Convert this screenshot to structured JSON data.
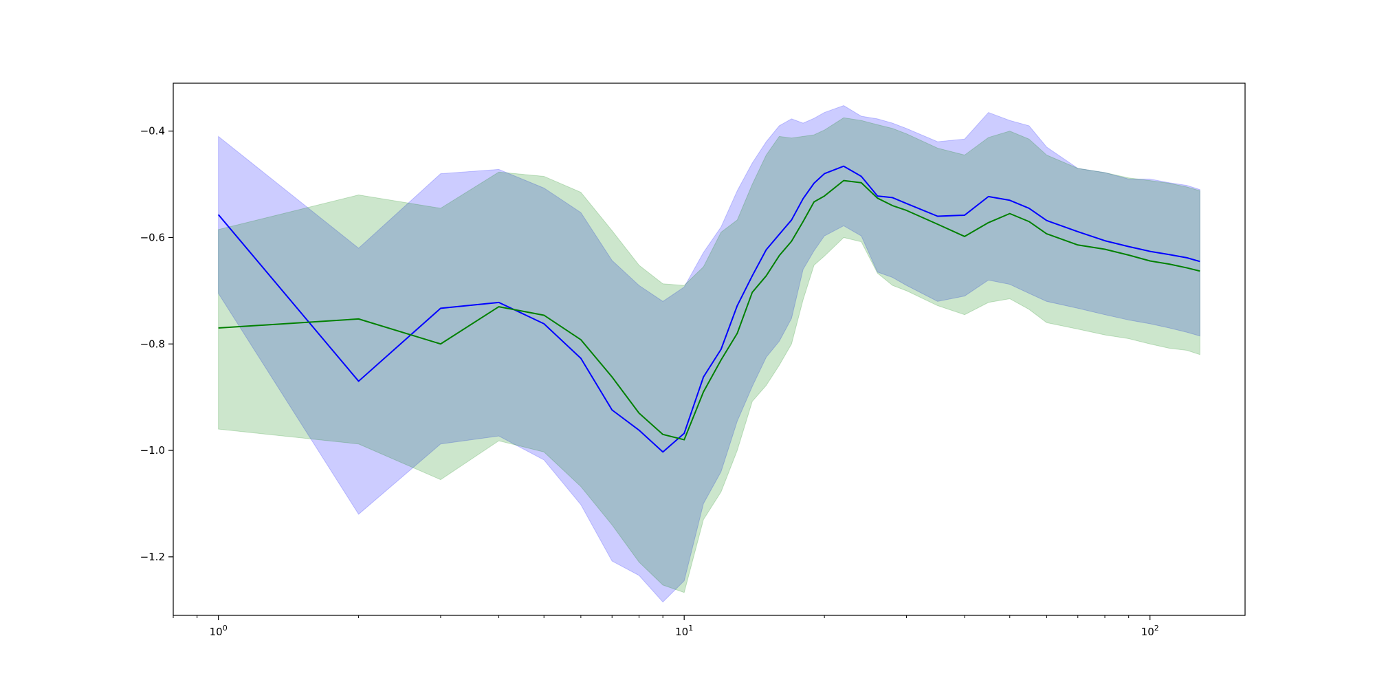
{
  "chart_data": {
    "type": "line",
    "title": "",
    "xlabel": "",
    "ylabel": "",
    "xscale": "log",
    "xlim": [
      0.8,
      160
    ],
    "ylim": [
      -1.31,
      -0.31
    ],
    "grid": false,
    "legend": "none",
    "x_ticks": [
      {
        "value": 1,
        "base": "10",
        "exp": "0"
      },
      {
        "value": 10,
        "base": "10",
        "exp": "1"
      },
      {
        "value": 100,
        "base": "10",
        "exp": "2"
      }
    ],
    "y_ticks": [
      {
        "value": -0.4,
        "label": "−0.4"
      },
      {
        "value": -0.6,
        "label": "−0.6"
      },
      {
        "value": -0.8,
        "label": "−0.8"
      },
      {
        "value": -1.0,
        "label": "−1.0"
      },
      {
        "value": -1.2,
        "label": "−1.2"
      }
    ],
    "series": [
      {
        "color": "#0000ff",
        "band_color": "#0000ff",
        "band_opacity": 0.2,
        "x": [
          1,
          2,
          3,
          4,
          5,
          6,
          7,
          8,
          9,
          10,
          11,
          12,
          13,
          14,
          15,
          16,
          17,
          18,
          19,
          20,
          22,
          24,
          26,
          28,
          30,
          35,
          40,
          45,
          50,
          55,
          60,
          70,
          80,
          90,
          100,
          110,
          120,
          128
        ],
        "y": [
          -0.557,
          -0.87,
          -0.733,
          -0.722,
          -0.762,
          -0.827,
          -0.924,
          -0.962,
          -1.003,
          -0.968,
          -0.862,
          -0.81,
          -0.728,
          -0.672,
          -0.623,
          -0.594,
          -0.567,
          -0.527,
          -0.498,
          -0.48,
          -0.466,
          -0.485,
          -0.522,
          -0.525,
          -0.536,
          -0.56,
          -0.558,
          -0.523,
          -0.53,
          -0.545,
          -0.568,
          -0.589,
          -0.606,
          -0.617,
          -0.626,
          -0.632,
          -0.638,
          -0.645
        ],
        "upper": [
          -0.41,
          -0.62,
          -0.48,
          -0.472,
          -0.507,
          -0.553,
          -0.643,
          -0.69,
          -0.72,
          -0.693,
          -0.628,
          -0.58,
          -0.512,
          -0.46,
          -0.42,
          -0.39,
          -0.377,
          -0.385,
          -0.376,
          -0.365,
          -0.352,
          -0.372,
          -0.377,
          -0.385,
          -0.395,
          -0.42,
          -0.415,
          -0.365,
          -0.38,
          -0.39,
          -0.43,
          -0.47,
          -0.478,
          -0.49,
          -0.49,
          -0.497,
          -0.502,
          -0.51
        ],
        "lower": [
          -0.705,
          -1.12,
          -0.988,
          -0.973,
          -1.018,
          -1.102,
          -1.208,
          -1.235,
          -1.285,
          -1.245,
          -1.1,
          -1.04,
          -0.945,
          -0.88,
          -0.825,
          -0.795,
          -0.752,
          -0.66,
          -0.625,
          -0.597,
          -0.578,
          -0.597,
          -0.665,
          -0.675,
          -0.69,
          -0.72,
          -0.71,
          -0.68,
          -0.688,
          -0.705,
          -0.72,
          -0.733,
          -0.745,
          -0.755,
          -0.762,
          -0.77,
          -0.778,
          -0.785
        ]
      },
      {
        "color": "#008000",
        "band_color": "#008000",
        "band_opacity": 0.2,
        "x": [
          1,
          2,
          3,
          4,
          5,
          6,
          7,
          8,
          9,
          10,
          11,
          12,
          13,
          14,
          15,
          16,
          17,
          18,
          19,
          20,
          22,
          24,
          26,
          28,
          30,
          35,
          40,
          45,
          50,
          55,
          60,
          70,
          80,
          90,
          100,
          110,
          120,
          128
        ],
        "y": [
          -0.77,
          -0.753,
          -0.8,
          -0.73,
          -0.746,
          -0.792,
          -0.862,
          -0.93,
          -0.97,
          -0.98,
          -0.89,
          -0.83,
          -0.78,
          -0.703,
          -0.672,
          -0.634,
          -0.607,
          -0.57,
          -0.533,
          -0.522,
          -0.493,
          -0.497,
          -0.526,
          -0.54,
          -0.549,
          -0.575,
          -0.598,
          -0.572,
          -0.555,
          -0.57,
          -0.593,
          -0.614,
          -0.622,
          -0.633,
          -0.644,
          -0.65,
          -0.657,
          -0.663
        ],
        "upper": [
          -0.585,
          -0.52,
          -0.545,
          -0.477,
          -0.485,
          -0.515,
          -0.587,
          -0.652,
          -0.687,
          -0.69,
          -0.655,
          -0.59,
          -0.567,
          -0.5,
          -0.445,
          -0.41,
          -0.413,
          -0.41,
          -0.407,
          -0.398,
          -0.375,
          -0.38,
          -0.388,
          -0.395,
          -0.405,
          -0.432,
          -0.445,
          -0.412,
          -0.4,
          -0.415,
          -0.445,
          -0.47,
          -0.478,
          -0.488,
          -0.493,
          -0.498,
          -0.505,
          -0.512
        ],
        "lower": [
          -0.96,
          -0.988,
          -1.055,
          -0.982,
          -1.003,
          -1.068,
          -1.14,
          -1.21,
          -1.253,
          -1.267,
          -1.13,
          -1.078,
          -1.0,
          -0.908,
          -0.878,
          -0.84,
          -0.8,
          -0.717,
          -0.652,
          -0.635,
          -0.6,
          -0.608,
          -0.667,
          -0.69,
          -0.7,
          -0.728,
          -0.745,
          -0.722,
          -0.715,
          -0.735,
          -0.76,
          -0.772,
          -0.783,
          -0.79,
          -0.8,
          -0.808,
          -0.812,
          -0.82
        ]
      }
    ]
  }
}
